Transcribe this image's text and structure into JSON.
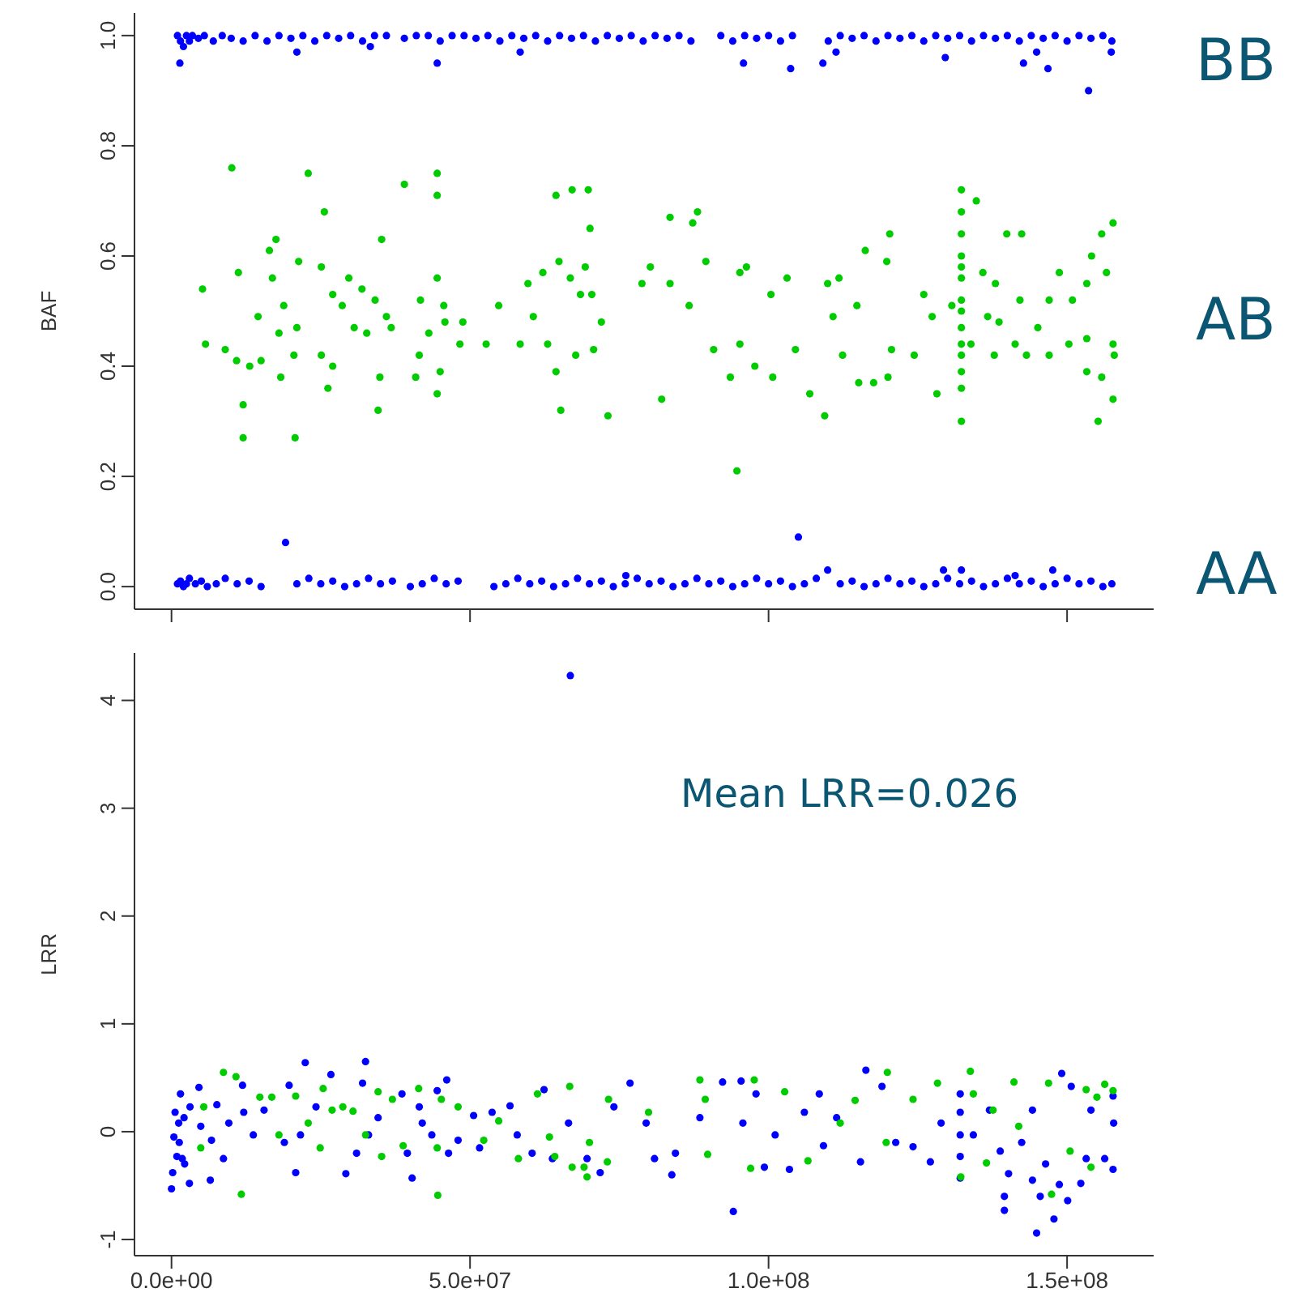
{
  "chart_data": [
    {
      "type": "scatter",
      "ylabel": "BAF",
      "xlim": [
        -6200000.0,
        164500000.0
      ],
      "ylim": [
        -0.041,
        1.041
      ],
      "xticks": [
        0,
        50000000.0,
        100000000.0,
        150000000.0
      ],
      "yticks": [
        {
          "value": 0,
          "label": "0.0"
        },
        {
          "value": 0.2,
          "label": "0.2"
        },
        {
          "value": 0.4,
          "label": "0.4"
        },
        {
          "value": 0.6,
          "label": "0.6"
        },
        {
          "value": 0.8,
          "label": "0.8"
        },
        {
          "value": 1,
          "label": "1.0"
        }
      ],
      "tick_labels": "y",
      "marker": "circle",
      "annotations": [
        "BB",
        "AB",
        "AA"
      ],
      "series": [
        {
          "color": "#0000ff",
          "x": [
            1000000.0,
            1500000.0,
            2000000.0,
            2500000.0,
            3000000.0,
            3500000.0,
            4500000.0,
            5500000.0,
            7000000.0,
            8500000.0,
            10000000.0,
            12000000.0,
            14000000.0,
            16000000.0,
            18000000.0,
            20000000.0,
            22000000.0,
            24000000.0,
            26000000.0,
            28000000.0,
            30000000.0,
            32000000.0,
            34000000.0,
            36000000.0,
            39000000.0,
            41000000.0,
            43000000.0,
            45000000.0,
            47000000.0,
            49000000.0,
            51000000.0,
            53000000.0,
            55000000.0,
            57000000.0,
            59000000.0,
            61000000.0,
            63000000.0,
            65000000.0,
            67000000.0,
            69000000.0,
            71000000.0,
            73000000.0,
            75000000.0,
            77000000.0,
            79000000.0,
            81000000.0,
            83000000.0,
            85000000.0,
            87000000.0,
            92000000.0,
            94000000.0,
            96000000.0,
            98000000.0,
            100000000.0,
            102000000.0,
            104000000.0,
            110000000.0,
            112000000.0,
            114000000.0,
            116000000.0,
            118000000.0,
            120000000.0,
            122000000.0,
            124000000.0,
            126000000.0,
            128000000.0,
            130000000.0,
            132000000.0,
            134000000.0,
            136000000.0,
            138000000.0,
            140000000.0,
            142000000.0,
            144000000.0,
            146000000.0,
            148000000.0,
            150000000.0,
            152000000.0,
            154000000.0,
            156000000.0,
            157500000.0,
            1400000.0,
            21000000.0,
            44500000.0,
            58400000.0,
            33300000.0,
            95800000.0,
            103700000.0,
            109100000.0,
            111300000.0,
            129600000.0,
            142700000.0,
            146800000.0,
            153600000.0,
            157400000.0,
            144900000.0,
            1000000.0,
            1500000.0,
            2000000.0,
            2500000.0,
            3000000.0,
            4000000.0,
            5000000.0,
            6000000.0,
            7500000.0,
            9000000.0,
            11000000.0,
            13000000.0,
            15000000.0,
            21000000.0,
            23000000.0,
            25000000.0,
            27000000.0,
            29000000.0,
            31000000.0,
            33000000.0,
            35000000.0,
            37000000.0,
            40000000.0,
            42000000.0,
            44000000.0,
            46000000.0,
            48000000.0,
            54000000.0,
            56000000.0,
            58000000.0,
            60000000.0,
            62000000.0,
            64000000.0,
            66000000.0,
            68000000.0,
            70000000.0,
            72000000.0,
            74000000.0,
            76000000.0,
            78000000.0,
            80000000.0,
            82000000.0,
            84000000.0,
            86000000.0,
            88000000.0,
            90000000.0,
            92000000.0,
            94000000.0,
            96000000.0,
            98000000.0,
            100000000.0,
            102000000.0,
            104000000.0,
            106000000.0,
            108000000.0,
            112000000.0,
            114000000.0,
            116000000.0,
            118000000.0,
            120000000.0,
            122000000.0,
            124000000.0,
            126000000.0,
            128000000.0,
            130000000.0,
            132000000.0,
            134000000.0,
            136000000.0,
            138000000.0,
            140000000.0,
            142000000.0,
            144000000.0,
            146000000.0,
            148000000.0,
            150000000.0,
            152000000.0,
            154000000.0,
            156000000.0,
            157500000.0,
            19100000.0,
            105000000.0,
            76100000.0,
            109900000.0,
            129300000.0,
            147600000.0,
            132300000.0,
            141300000.0
          ],
          "values": [
            1.0,
            0.99,
            0.98,
            1.0,
            0.99,
            1.0,
            0.995,
            1.0,
            0.99,
            1.0,
            0.995,
            0.99,
            1.0,
            0.99,
            1.0,
            0.995,
            1.0,
            0.99,
            1.0,
            0.995,
            1.0,
            0.99,
            1.0,
            1.0,
            0.995,
            1.0,
            1.0,
            0.99,
            1.0,
            1.0,
            0.995,
            1.0,
            0.99,
            1.0,
            0.995,
            1.0,
            0.99,
            1.0,
            0.995,
            1.0,
            0.99,
            1.0,
            0.995,
            1.0,
            0.99,
            1.0,
            0.995,
            1.0,
            0.99,
            1.0,
            0.99,
            1.0,
            0.995,
            1.0,
            0.99,
            1.0,
            0.99,
            1.0,
            0.995,
            1.0,
            0.99,
            1.0,
            0.995,
            1.0,
            0.99,
            1.0,
            0.995,
            1.0,
            0.99,
            1.0,
            0.995,
            1.0,
            0.99,
            1.0,
            0.995,
            1.0,
            0.99,
            1.0,
            0.995,
            1.0,
            0.99,
            0.95,
            0.97,
            0.95,
            0.97,
            0.98,
            0.95,
            0.94,
            0.95,
            0.97,
            0.96,
            0.95,
            0.94,
            0.9,
            0.97,
            0.97,
            0.005,
            0.01,
            0,
            0.005,
            0.015,
            0.005,
            0.01,
            0,
            0.005,
            0.015,
            0.005,
            0.01,
            0,
            0.005,
            0.015,
            0.005,
            0.01,
            0,
            0.005,
            0.015,
            0.005,
            0.01,
            0,
            0.005,
            0.015,
            0.005,
            0.01,
            0,
            0.005,
            0.015,
            0.005,
            0.01,
            0,
            0.005,
            0.015,
            0.005,
            0.01,
            0,
            0.005,
            0.015,
            0.005,
            0.01,
            0,
            0.005,
            0.015,
            0.005,
            0.01,
            0,
            0.005,
            0.015,
            0.005,
            0.01,
            0,
            0.005,
            0.015,
            0.005,
            0.01,
            0,
            0.005,
            0.015,
            0.005,
            0.01,
            0,
            0.005,
            0.015,
            0.005,
            0.01,
            0,
            0.005,
            0.015,
            0.005,
            0.01,
            0,
            0.005,
            0.015,
            0.005,
            0.01,
            0,
            0.005,
            0.08,
            0.09,
            0.02,
            0.03,
            0.03,
            0.03,
            0.03,
            0.02
          ]
        },
        {
          "color": "#00cc00",
          "x": [
            5200000.0,
            5700000.0,
            9000000.0,
            10100000.0,
            10900000.0,
            11200000.0,
            12000000.0,
            12000000.0,
            13100000.0,
            14500000.0,
            15000000.0,
            16400000.0,
            16900000.0,
            17500000.0,
            18000000.0,
            18300000.0,
            18800000.0,
            20500000.0,
            21000000.0,
            20700000.0,
            21300000.0,
            22900000.0,
            25100000.0,
            25100000.0,
            25600000.0,
            26200000.0,
            27000000.0,
            27000000.0,
            28600000.0,
            29700000.0,
            30600000.0,
            31900000.0,
            32700000.0,
            34100000.0,
            34600000.0,
            34900000.0,
            35200000.0,
            36000000.0,
            36800000.0,
            39000000.0,
            40900000.0,
            41500000.0,
            41700000.0,
            43100000.0,
            44500000.0,
            44500000.0,
            44500000.0,
            44500000.0,
            45000000.0,
            45600000.0,
            45800000.0,
            48300000.0,
            48800000.0,
            52700000.0,
            54800000.0,
            58400000.0,
            59700000.0,
            60600000.0,
            62200000.0,
            63000000.0,
            64400000.0,
            64400000.0,
            64900000.0,
            65200000.0,
            66800000.0,
            67100000.0,
            67700000.0,
            68500000.0,
            69300000.0,
            69800000.0,
            70100000.0,
            70400000.0,
            70700000.0,
            72000000.0,
            73100000.0,
            78800000.0,
            80200000.0,
            82100000.0,
            83500000.0,
            83500000.0,
            87300000.0,
            88100000.0,
            86700000.0,
            89500000.0,
            90800000.0,
            93600000.0,
            94700000.0,
            95200000.0,
            95200000.0,
            96300000.0,
            97700000.0,
            100400000.0,
            100700000.0,
            103100000.0,
            104500000.0,
            106900000.0,
            109400000.0,
            109900000.0,
            110800000.0,
            111800000.0,
            112400000.0,
            114800000.0,
            115100000.0,
            116200000.0,
            117600000.0,
            119800000.0,
            120300000.0,
            120000000.0,
            120600000.0,
            124400000.0,
            126000000.0,
            127400000.0,
            128200000.0,
            130700000.0,
            132300000.0,
            132300000.0,
            132300000.0,
            132300000.0,
            132300000.0,
            132300000.0,
            132300000.0,
            132300000.0,
            132300000.0,
            132300000.0,
            132300000.0,
            132300000.0,
            132300000.0,
            132300000.0,
            134800000.0,
            135900000.0,
            133900000.0,
            136700000.0,
            137800000.0,
            138000000.0,
            138600000.0,
            139900000.0,
            141300000.0,
            142100000.0,
            142400000.0,
            143200000.0,
            145100000.0,
            147000000.0,
            147000000.0,
            148700000.0,
            150300000.0,
            150900000.0,
            153300000.0,
            153300000.0,
            153300000.0,
            154100000.0,
            155200000.0,
            155800000.0,
            155800000.0,
            156600000.0,
            157700000.0,
            157700000.0,
            157700000.0,
            157900000.0
          ],
          "values": [
            0.54,
            0.44,
            0.43,
            0.76,
            0.41,
            0.57,
            0.33,
            0.27,
            0.4,
            0.49,
            0.41,
            0.61,
            0.56,
            0.63,
            0.46,
            0.38,
            0.51,
            0.42,
            0.47,
            0.27,
            0.59,
            0.75,
            0.58,
            0.42,
            0.68,
            0.36,
            0.53,
            0.4,
            0.51,
            0.56,
            0.47,
            0.54,
            0.46,
            0.52,
            0.32,
            0.38,
            0.63,
            0.49,
            0.47,
            0.73,
            0.38,
            0.42,
            0.52,
            0.46,
            0.75,
            0.71,
            0.56,
            0.35,
            0.39,
            0.51,
            0.48,
            0.44,
            0.48,
            0.44,
            0.51,
            0.44,
            0.55,
            0.49,
            0.57,
            0.44,
            0.71,
            0.39,
            0.59,
            0.32,
            0.56,
            0.72,
            0.42,
            0.53,
            0.58,
            0.72,
            0.65,
            0.53,
            0.43,
            0.48,
            0.31,
            0.55,
            0.58,
            0.34,
            0.67,
            0.55,
            0.66,
            0.68,
            0.51,
            0.59,
            0.43,
            0.38,
            0.21,
            0.57,
            0.44,
            0.58,
            0.4,
            0.53,
            0.38,
            0.56,
            0.43,
            0.35,
            0.31,
            0.55,
            0.49,
            0.56,
            0.42,
            0.51,
            0.37,
            0.61,
            0.37,
            0.59,
            0.64,
            0.38,
            0.43,
            0.42,
            0.53,
            0.49,
            0.35,
            0.51,
            0.72,
            0.68,
            0.64,
            0.6,
            0.58,
            0.56,
            0.52,
            0.5,
            0.47,
            0.44,
            0.42,
            0.39,
            0.36,
            0.3,
            0.7,
            0.57,
            0.44,
            0.49,
            0.42,
            0.55,
            0.48,
            0.64,
            0.44,
            0.52,
            0.64,
            0.42,
            0.47,
            0.52,
            0.42,
            0.57,
            0.44,
            0.52,
            0.55,
            0.45,
            0.39,
            0.6,
            0.3,
            0.64,
            0.38,
            0.57,
            0.66,
            0.44,
            0.34,
            0.42
          ]
        }
      ]
    },
    {
      "type": "scatter",
      "ylabel": "LRR",
      "xlim": [
        -6200000.0,
        164500000.0
      ],
      "ylim": [
        -1.15,
        4.44
      ],
      "xticks": [
        {
          "value": 0,
          "label": "0.0e+00"
        },
        {
          "value": 50000000.0,
          "label": "5.0e+07"
        },
        {
          "value": 100000000.0,
          "label": "1.0e+08"
        },
        {
          "value": 150000000.0,
          "label": "1.5e+08"
        }
      ],
      "yticks": [
        -1,
        0,
        1,
        2,
        3,
        4
      ],
      "marker": "circle",
      "annotations": [
        "Mean LRR=0.026"
      ],
      "series": [
        {
          "color": "#0000ff",
          "x": [
            0,
            200000.0,
            400000.0,
            600000.0,
            900000.0,
            1200000.0,
            1300000.0,
            1500000.0,
            1800000.0,
            2100000.0,
            2200000.0,
            3000000.0,
            3100000.0,
            4600000.0,
            4900000.0,
            6500000.0,
            6700000.0,
            7600000.0,
            8700000.0,
            9600000.0,
            11900000.0,
            12100000.0,
            13700000.0,
            15500000.0,
            18900000.0,
            19700000.0,
            20800000.0,
            22400000.0,
            21600000.0,
            24200000.0,
            26700000.0,
            29200000.0,
            31000000.0,
            32000000.0,
            32500000.0,
            33000000.0,
            34600000.0,
            38600000.0,
            39500000.0,
            40300000.0,
            41500000.0,
            42000000.0,
            43600000.0,
            44500000.0,
            46100000.0,
            46400000.0,
            48000000.0,
            50600000.0,
            51600000.0,
            53700000.0,
            56700000.0,
            57900000.0,
            60400000.0,
            62400000.0,
            63800000.0,
            66500000.0,
            66800000.0,
            69600000.0,
            71800000.0,
            74100000.0,
            76800000.0,
            79500000.0,
            80900000.0,
            83800000.0,
            84400000.0,
            88500000.0,
            92300000.0,
            94100000.0,
            95400000.0,
            95700000.0,
            97900000.0,
            99300000.0,
            101100000.0,
            103500000.0,
            106000000.0,
            108500000.0,
            109200000.0,
            111400000.0,
            115400000.0,
            116300000.0,
            119000000.0,
            121300000.0,
            124200000.0,
            127100000.0,
            128900000.0,
            132100000.0,
            132100000.0,
            132100000.0,
            132100000.0,
            132100000.0,
            134300000.0,
            137000000.0,
            138800000.0,
            139500000.0,
            139500000.0,
            140200000.0,
            142400000.0,
            144200000.0,
            144200000.0,
            144900000.0,
            145500000.0,
            146400000.0,
            147800000.0,
            148700000.0,
            149100000.0,
            150100000.0,
            150700000.0,
            152300000.0,
            153200000.0,
            154000000.0,
            156300000.0,
            157700000.0,
            157800000.0,
            157700000.0
          ],
          "values": [
            -0.53,
            -0.38,
            -0.05,
            0.18,
            -0.23,
            0.08,
            -0.1,
            0.35,
            -0.25,
            0.13,
            -0.3,
            -0.48,
            0.23,
            0.41,
            0.05,
            -0.45,
            -0.08,
            0.25,
            -0.25,
            0.08,
            0.43,
            0.18,
            -0.03,
            0.2,
            -0.1,
            0.43,
            -0.38,
            0.64,
            -0.03,
            0.23,
            0.53,
            -0.39,
            -0.2,
            0.45,
            0.65,
            -0.03,
            0.13,
            0.35,
            -0.2,
            -0.43,
            0.23,
            0.08,
            -0.03,
            0.38,
            0.48,
            -0.2,
            -0.08,
            0.15,
            -0.15,
            0.18,
            0.24,
            -0.03,
            -0.2,
            0.39,
            -0.25,
            0.08,
            4.23,
            -0.25,
            -0.38,
            0.23,
            0.45,
            0.08,
            -0.25,
            -0.4,
            -0.2,
            0.13,
            0.46,
            -0.74,
            0.47,
            0.08,
            0.35,
            -0.33,
            -0.03,
            -0.35,
            0.18,
            0.35,
            -0.13,
            0.13,
            -0.28,
            0.57,
            0.42,
            -0.1,
            -0.14,
            -0.28,
            0.08,
            0.35,
            0.18,
            -0.03,
            -0.23,
            -0.43,
            -0.03,
            0.2,
            -0.18,
            -0.73,
            -0.6,
            -0.39,
            -0.1,
            0.2,
            -0.45,
            -0.94,
            -0.6,
            -0.3,
            -0.81,
            -0.49,
            0.54,
            -0.64,
            0.42,
            -0.48,
            -0.25,
            0.2,
            -0.25,
            -0.35,
            0.08,
            0.33
          ]
        },
        {
          "color": "#00cc00",
          "x": [
            4900000.0,
            5400000.0,
            8700000.0,
            10800000.0,
            11700000.0,
            14800000.0,
            16800000.0,
            18000000.0,
            20800000.0,
            22900000.0,
            24900000.0,
            25400000.0,
            26900000.0,
            28700000.0,
            30400000.0,
            32500000.0,
            34600000.0,
            35200000.0,
            37000000.0,
            38800000.0,
            41400000.0,
            44500000.0,
            44600000.0,
            45200000.0,
            48000000.0,
            52300000.0,
            54800000.0,
            58100000.0,
            61300000.0,
            63300000.0,
            64200000.0,
            66700000.0,
            67100000.0,
            69100000.0,
            69600000.0,
            70000000.0,
            73000000.0,
            73200000.0,
            79900000.0,
            88500000.0,
            89400000.0,
            89800000.0,
            97600000.0,
            97000000.0,
            102700000.0,
            106600000.0,
            112000000.0,
            114500000.0,
            119900000.0,
            119700000.0,
            124200000.0,
            128300000.0,
            132200000.0,
            133800000.0,
            134300000.0,
            136500000.0,
            137600000.0,
            141100000.0,
            141900000.0,
            146900000.0,
            147400000.0,
            150500000.0,
            153200000.0,
            155000000.0,
            156300000.0,
            157700000.0,
            154000000.0
          ],
          "values": [
            -0.15,
            0.23,
            0.55,
            0.51,
            -0.58,
            0.32,
            0.32,
            -0.03,
            0.33,
            0.08,
            -0.15,
            0.4,
            0.2,
            0.23,
            0.19,
            -0.03,
            0.37,
            -0.23,
            0.3,
            -0.13,
            0.4,
            -0.15,
            -0.59,
            0.3,
            0.23,
            -0.08,
            0.1,
            -0.25,
            0.35,
            -0.05,
            -0.23,
            0.42,
            -0.33,
            -0.33,
            -0.42,
            -0.1,
            -0.28,
            0.3,
            0.18,
            0.48,
            0.3,
            -0.21,
            0.48,
            -0.34,
            0.37,
            -0.27,
            0.08,
            0.29,
            0.55,
            -0.1,
            0.3,
            0.45,
            -0.42,
            0.56,
            0.35,
            -0.29,
            0.2,
            0.46,
            0.05,
            0.45,
            -0.58,
            -0.18,
            0.39,
            0.32,
            0.44,
            0.38,
            -0.33
          ]
        }
      ]
    }
  ]
}
